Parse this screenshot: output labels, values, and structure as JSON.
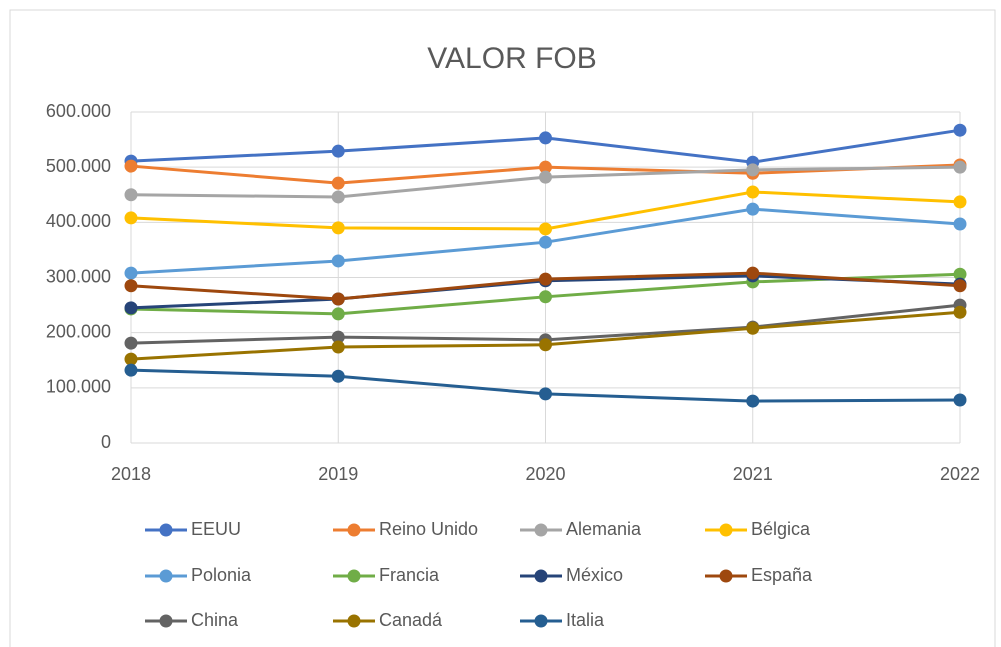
{
  "chart_data": {
    "type": "line",
    "title": "VALOR FOB",
    "categories": [
      "2018",
      "2019",
      "2020",
      "2021",
      "2022"
    ],
    "ylim": [
      0,
      600000
    ],
    "yticks": [
      0,
      {
        "value": 100000,
        "label": "100.000"
      },
      {
        "value": 200000,
        "label": "200.000"
      },
      {
        "value": 300000,
        "label": "300.000"
      },
      {
        "value": 400000,
        "label": "400.000"
      },
      {
        "value": 500000,
        "label": "500.000"
      },
      {
        "value": 600000,
        "label": "600.000"
      }
    ],
    "grid": true,
    "legend": "bottom",
    "series": [
      {
        "name": "EEUU",
        "color": "#4472c4",
        "values": [
          511000,
          529000,
          553000,
          509000,
          567000
        ]
      },
      {
        "name": "Reino Unido",
        "color": "#ed7d31",
        "values": [
          502000,
          471000,
          500000,
          489000,
          504000
        ]
      },
      {
        "name": "Alemania",
        "color": "#a5a5a5",
        "values": [
          450000,
          446000,
          482000,
          495000,
          500000
        ]
      },
      {
        "name": "Bélgica",
        "color": "#ffc000",
        "values": [
          408000,
          390000,
          388000,
          455000,
          437000
        ]
      },
      {
        "name": "Polonia",
        "color": "#5b9bd5",
        "values": [
          308000,
          330000,
          364000,
          424000,
          397000
        ]
      },
      {
        "name": "Francia",
        "color": "#70ad47",
        "values": [
          243000,
          234000,
          265000,
          292000,
          306000
        ]
      },
      {
        "name": "México",
        "color": "#264478",
        "values": [
          245000,
          261000,
          294000,
          303000,
          288000
        ]
      },
      {
        "name": "España",
        "color": "#9e480e",
        "values": [
          285000,
          261000,
          297000,
          308000,
          285000
        ]
      },
      {
        "name": "China",
        "color": "#636363",
        "values": [
          181000,
          192000,
          187000,
          210000,
          250000
        ]
      },
      {
        "name": "Canadá",
        "color": "#997300",
        "values": [
          152000,
          174000,
          178000,
          208000,
          237000
        ]
      },
      {
        "name": "Italia",
        "color": "#255e91",
        "values": [
          132000,
          121000,
          89000,
          76000,
          78000
        ]
      }
    ]
  }
}
